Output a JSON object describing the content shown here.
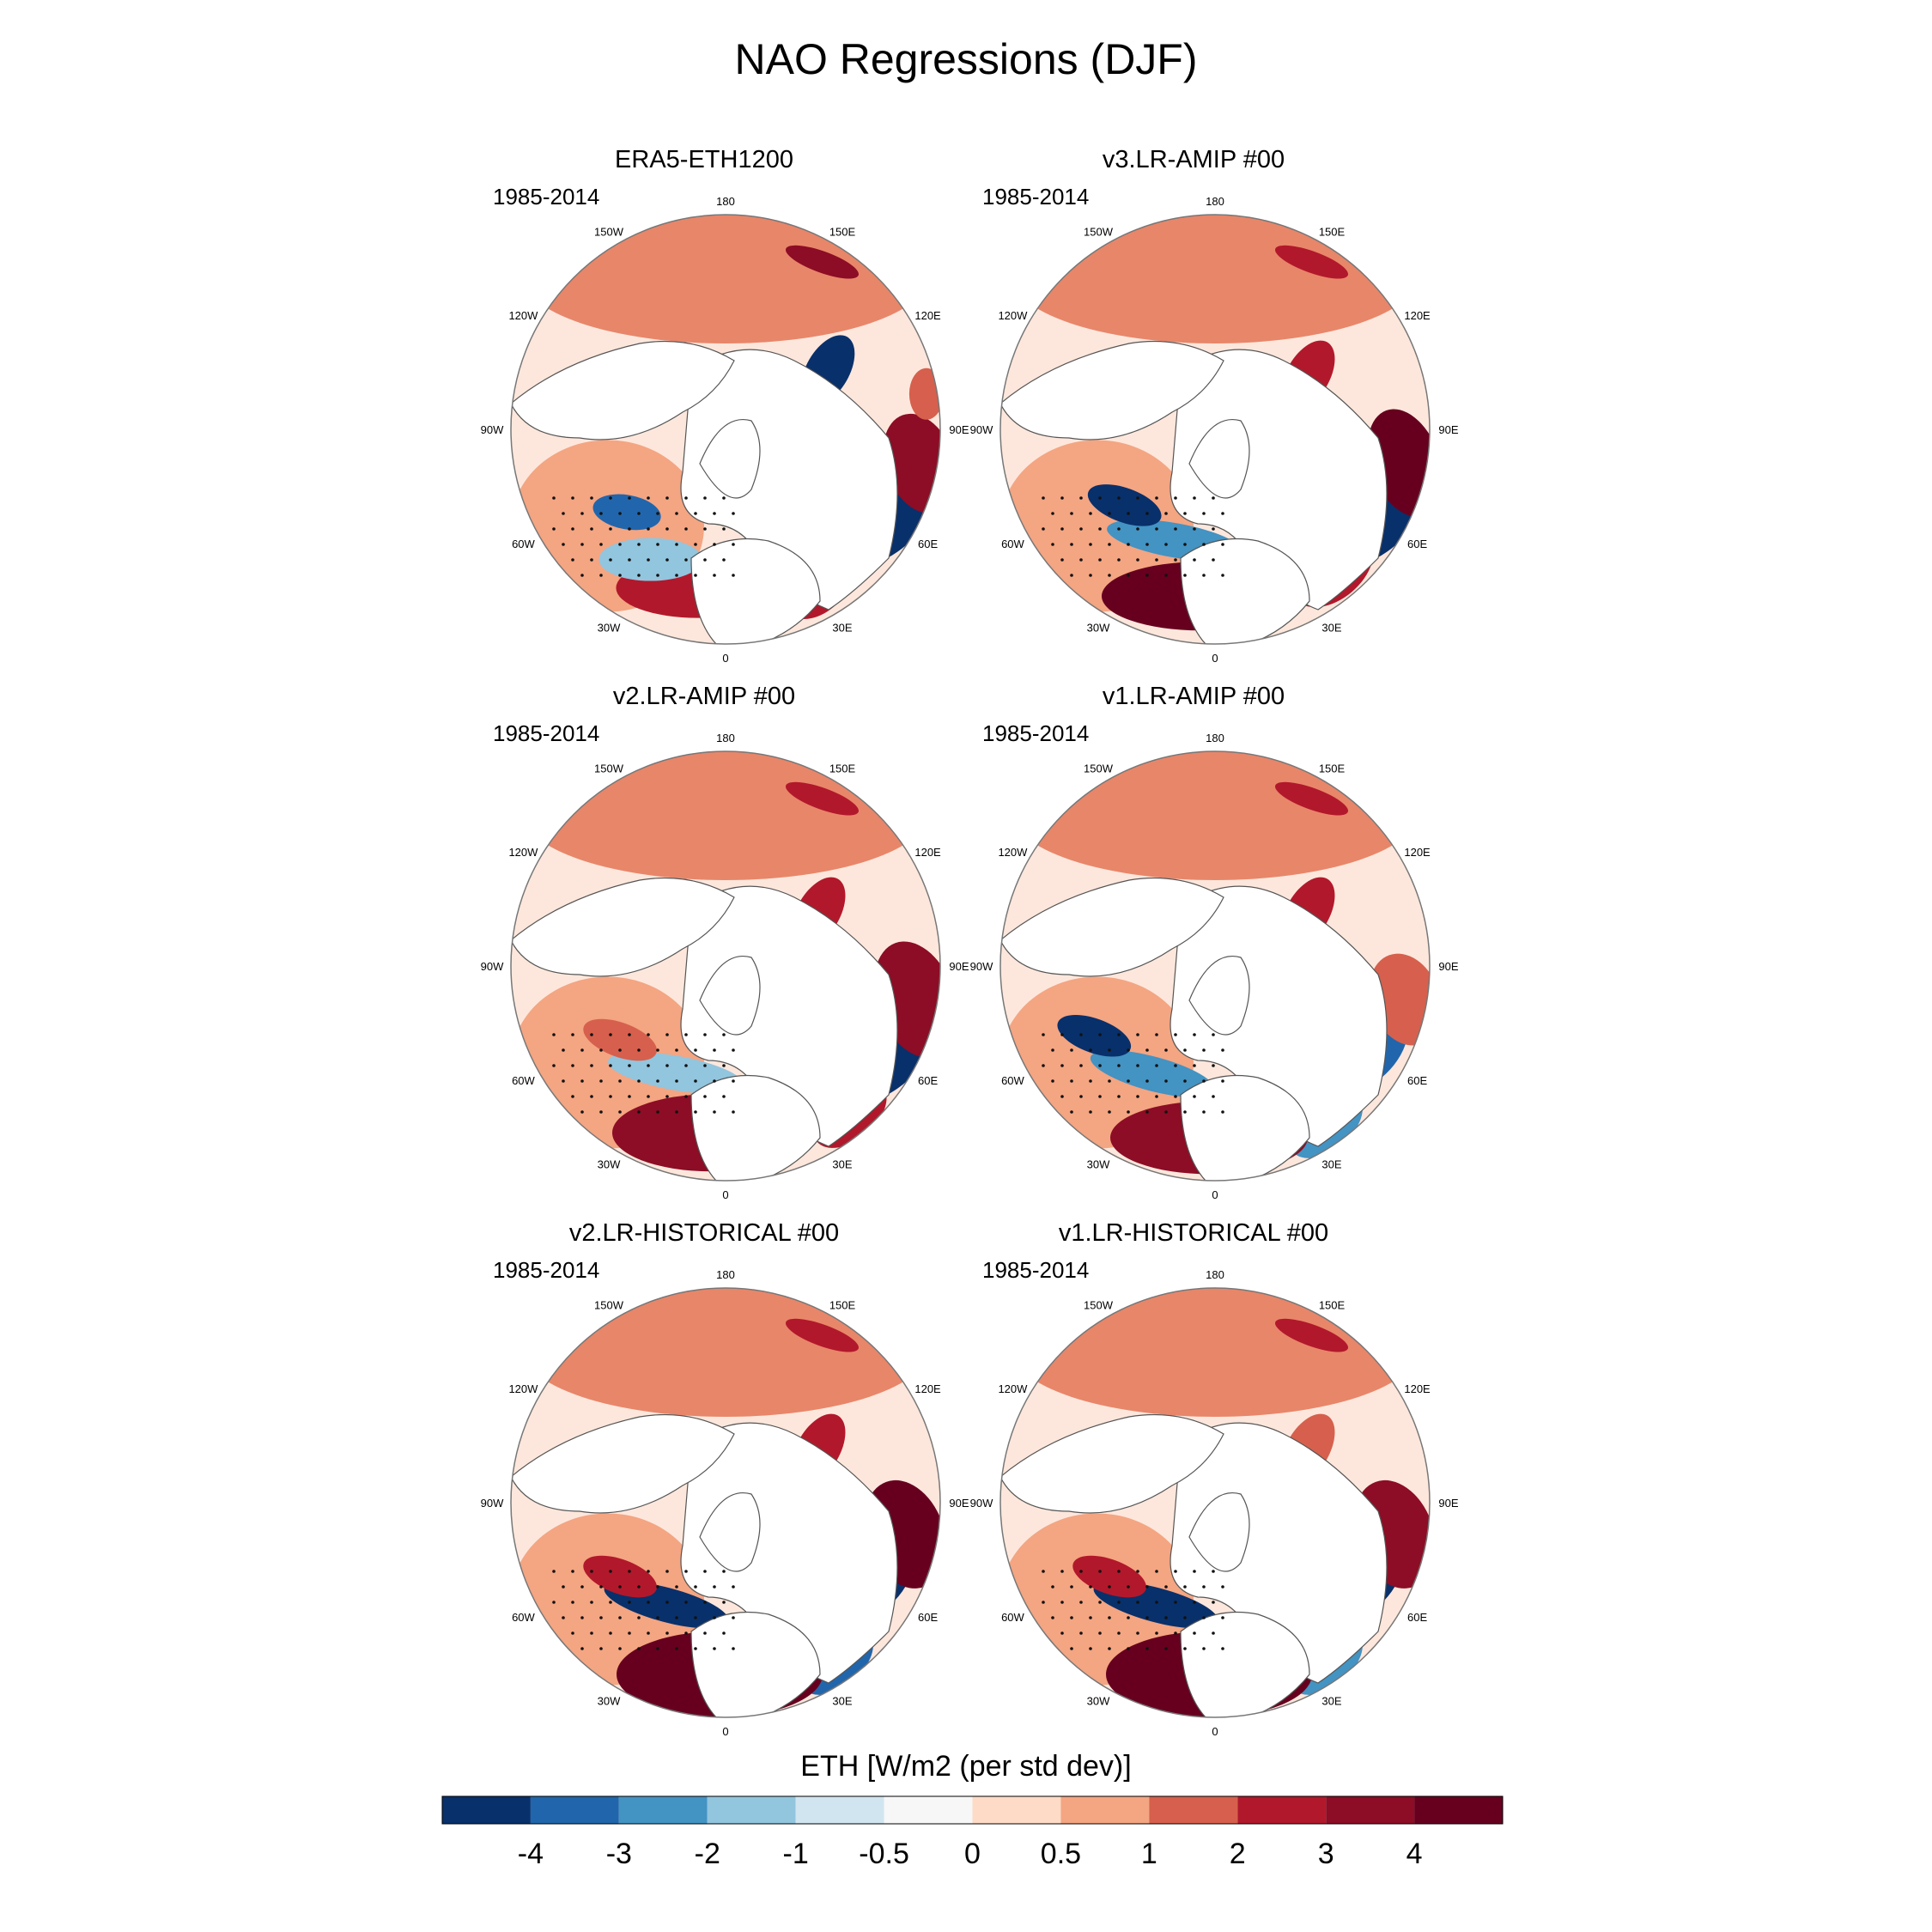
{
  "title": "NAO Regressions (DJF)",
  "panels": [
    {
      "title": "ERA5-ETH1200",
      "period": "1985-2014"
    },
    {
      "title": "v3.LR-AMIP  #00",
      "period": "1985-2014"
    },
    {
      "title": "v2.LR-AMIP  #00",
      "period": "1985-2014"
    },
    {
      "title": "v1.LR-AMIP  #00",
      "period": "1985-2014"
    },
    {
      "title": "v2.LR-HISTORICAL  #00",
      "period": "1985-2014"
    },
    {
      "title": "v1.LR-HISTORICAL  #00",
      "period": "1985-2014"
    }
  ],
  "lon_labels": [
    "180",
    "150E",
    "120E",
    "90E",
    "60E",
    "30E",
    "0",
    "30W",
    "60W",
    "90W",
    "120W",
    "150W"
  ],
  "colorbar": {
    "title": "ETH [W/m2 (per std dev)]",
    "colors": [
      "#08306b",
      "#2166ac",
      "#4393c3",
      "#92c5de",
      "#d1e5f0",
      "#f7f7f7",
      "#fddbc7",
      "#f4a582",
      "#d6604d",
      "#b2182b",
      "#8c0d25",
      "#67001f"
    ],
    "tick_labels": [
      "-4",
      "-3",
      "-2",
      "-1",
      "-0.5",
      "0",
      "0.5",
      "1",
      "2",
      "3",
      "4"
    ]
  },
  "chart_data": {
    "type": "heatmap",
    "projection": "north polar stereographic",
    "variable": "ETH [W/m2 (per std dev)]",
    "levels": [
      -4,
      -3,
      -2,
      -1,
      -0.5,
      0,
      0.5,
      1,
      2,
      3,
      4
    ],
    "season": "DJF",
    "period": "1985-2014",
    "panels": [
      "ERA5-ETH1200",
      "v3.LR-AMIP  #00",
      "v2.LR-AMIP  #00",
      "v1.LR-AMIP  #00",
      "v2.LR-HISTORICAL  #00",
      "v1.LR-HISTORICAL  #00"
    ]
  }
}
